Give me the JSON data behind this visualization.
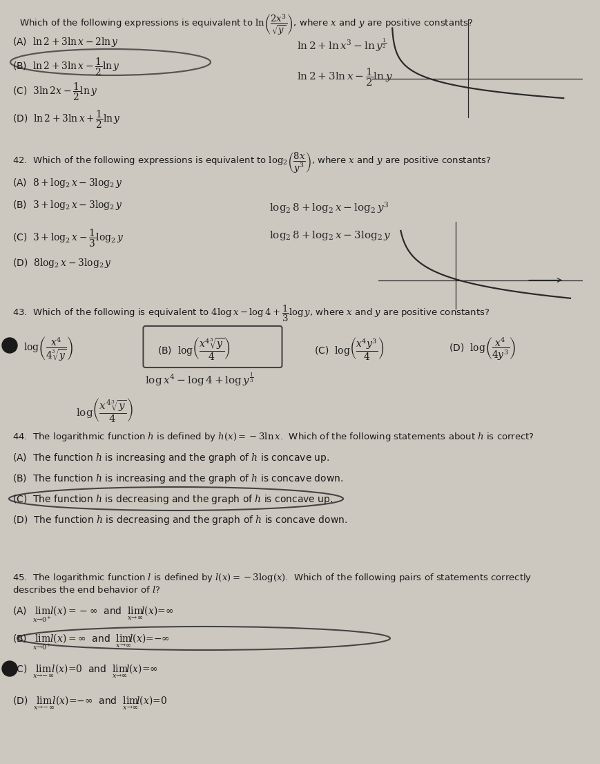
{
  "bg_color": "#cdc8bf",
  "text_color": "#1a1a1a",
  "hand_color": "#2a2a2a",
  "q41_question": "Which of the following expressions is equivalent to $\\ln\\!\\left(\\dfrac{2x^3}{\\sqrt{y}}\\right)$, where $x$ and $y$ are positive constants?",
  "q41_opts": [
    "(A)  $\\ln 2+3\\ln x-2\\ln y$",
    "(B)  $\\ln 2+3\\ln x-\\dfrac{1}{2}\\ln y$",
    "(C)  $3\\ln 2x-\\dfrac{1}{2}\\ln y$",
    "(D)  $\\ln 2+3\\ln x+\\dfrac{1}{2}\\ln y$"
  ],
  "q41_work1": "$\\ln 2+\\ln x^3-\\ln y^{\\frac{1}{2}}$",
  "q41_work2": "$\\ln 2+3\\ln x-\\dfrac{1}{2}\\ln y$",
  "q42_question": "42.  Which of the following expressions is equivalent to $\\log_2\\!\\left(\\dfrac{8x}{y^3}\\right)$, where $x$ and $y$ are positive constants?",
  "q42_opts": [
    "(A)  $8+\\log_2 x-3\\log_2 y$",
    "(B)  $3+\\log_2 x-3\\log_2 y$",
    "(C)  $3+\\log_2 x-\\dfrac{1}{3}\\log_2 y$",
    "(D)  $8\\log_2 x-3\\log_2 y$"
  ],
  "q42_work1": "$\\log_2 8+\\log_2 x-\\log_2 y^3$",
  "q42_work2": "$\\log_2 8+\\log_2 x-3\\log_2 y$",
  "q43_question": "43.  Which of the following is equivalent to $4\\log x-\\log 4+\\dfrac{1}{3}\\log y$, where $x$ and $y$ are positive constants?",
  "q43_opts": [
    "(A)  $\\log\\!\\left(\\dfrac{x^4}{4\\sqrt[3]{y}}\\right)$",
    "(B)  $\\log\\!\\left(\\dfrac{x^4\\sqrt[3]{y}}{4}\\right)$",
    "(C)  $\\log\\!\\left(\\dfrac{x^4 y^3}{4}\\right)$",
    "(D)  $\\log\\!\\left(\\dfrac{x^4}{4y^3}\\right)$"
  ],
  "q43_work1": "$\\log x^4-\\log 4+\\log y^{\\frac{1}{3}}$",
  "q43_work2": "$\\log\\!\\left(\\dfrac{x^4\\sqrt[3]{y}}{4}\\right)$",
  "q44_question": "44.  The logarithmic function $h$ is defined by $h(x)=-3\\ln x$.  Which of the following statements about $h$ is correct?",
  "q44_opts": [
    "(A)  The function $h$ is increasing and the graph of $h$ is concave up.",
    "(B)  The function $h$ is increasing and the graph of $h$ is concave down.",
    "(C)  The function $h$ is decreasing and the graph of $h$ is concave up.",
    "(D)  The function $h$ is decreasing and the graph of $h$ is concave down."
  ],
  "q45_question": "45.  The logarithmic function $l$ is defined by $l(x)=-3\\log(x)$.  Which of the following pairs of statements correctly\ndescribes the end behavior of $l$?",
  "q45_opts": [
    "(A)  $\\lim_{x\\to 0^+}\\!l(x)=-\\infty$  and  $\\lim_{x\\to\\infty}\\!l(x)=\\infty$",
    "(B)  $\\lim_{x\\to 0^+}\\!l(x)=\\infty$  and  $\\lim_{x\\to\\infty}\\!l(x)=-\\infty$",
    "(C)  $\\lim_{x\\to -\\infty}\\!l(x)=0$  and  $\\lim_{x\\to\\infty}\\!l(x)=\\infty$",
    "(D)  $\\lim_{x\\to -\\infty}\\!l(x)=-\\infty$  and  $\\lim_{x\\to\\infty}\\!l(x)=0$"
  ]
}
